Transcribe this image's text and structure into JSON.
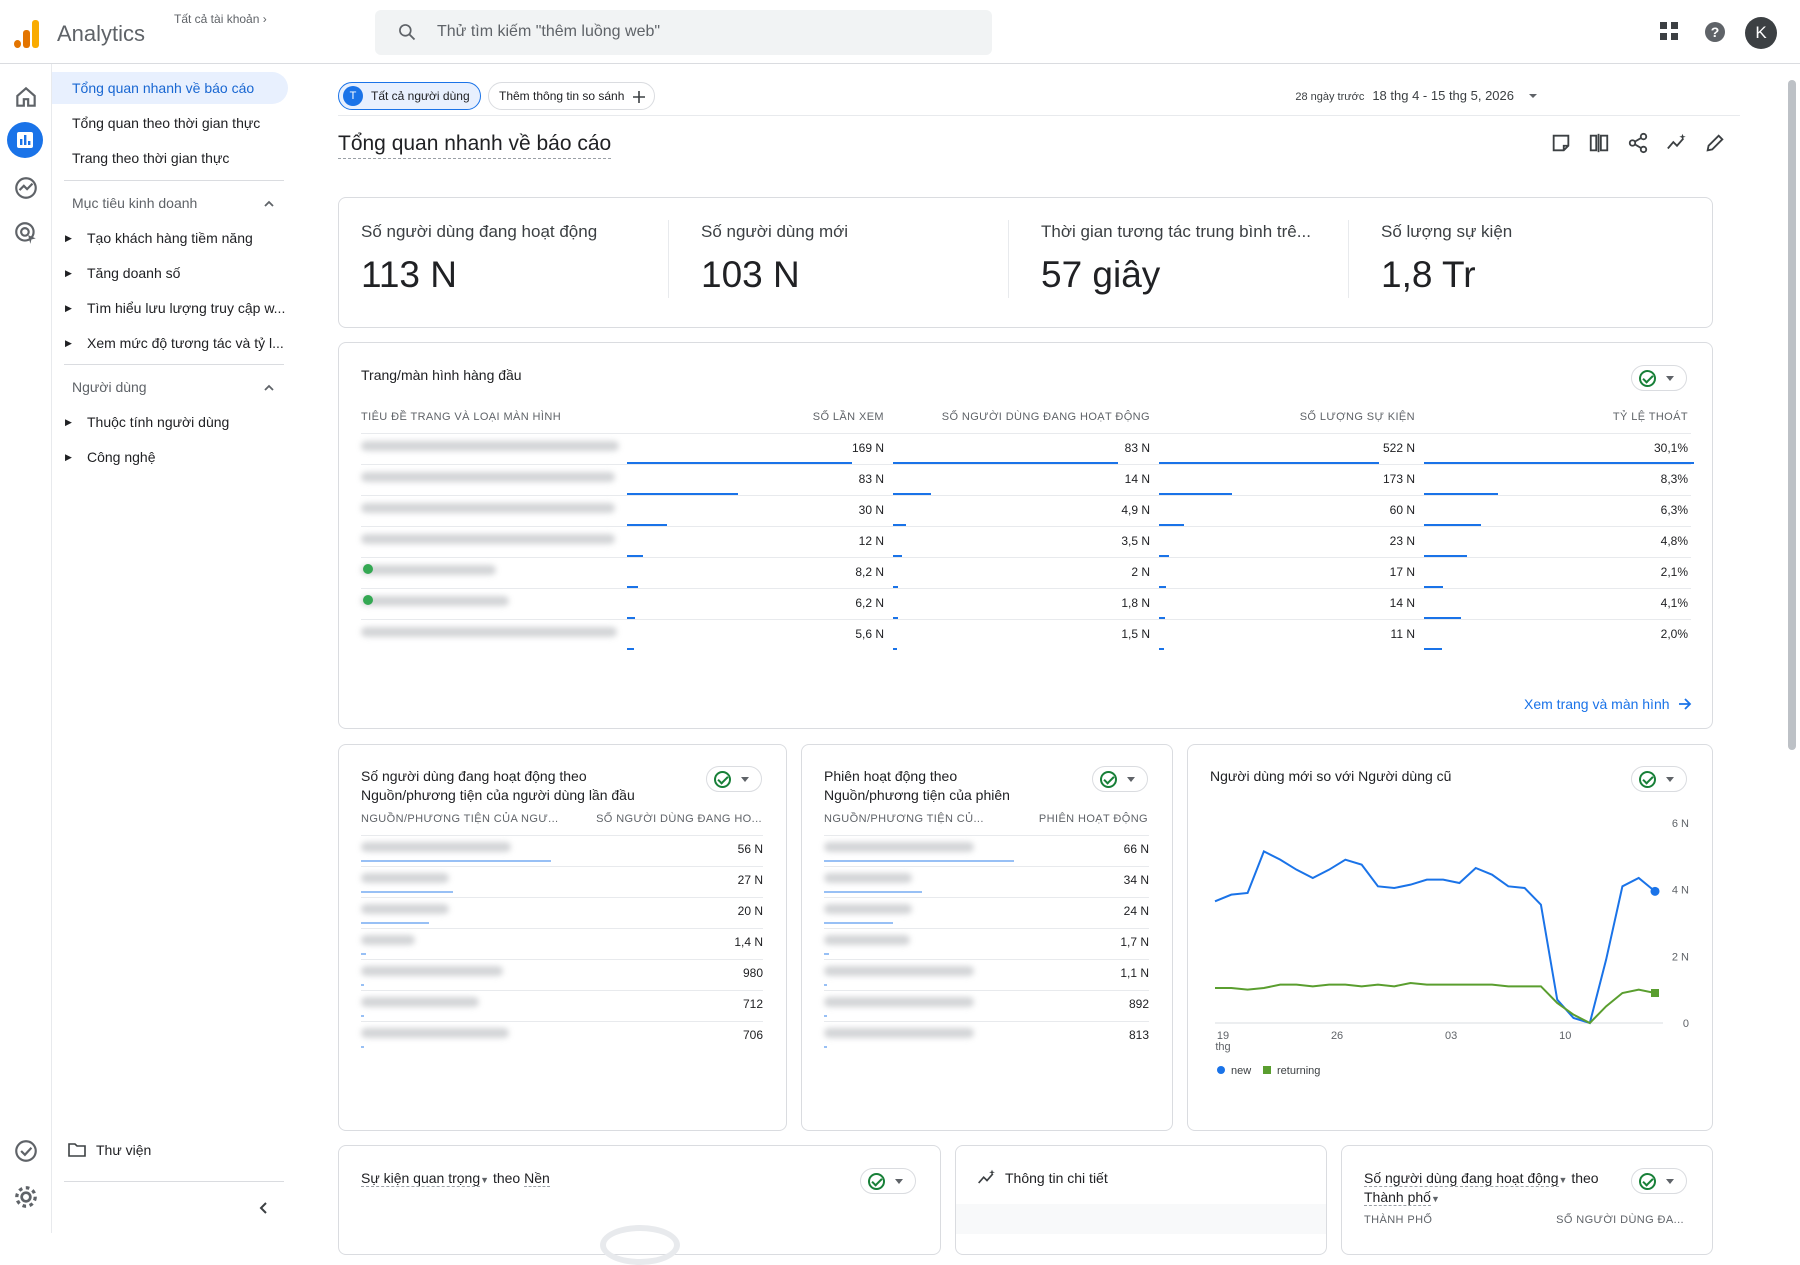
{
  "app": {
    "name": "Analytics",
    "account_crumb": "Tất cả tài khoản",
    "avatar_letter": "K",
    "search_placeholder": "Thử tìm kiếm \"thêm luồng web\""
  },
  "nav": {
    "items": [
      {
        "label": "Tổng quan nhanh về báo cáo"
      },
      {
        "label": "Tổng quan theo thời gian thực"
      },
      {
        "label": "Trang theo thời gian thực"
      }
    ],
    "section1": "Mục tiêu kinh doanh",
    "section1_items": [
      "Tạo khách hàng tiềm năng",
      "Tăng doanh số",
      "Tìm hiểu lưu lượng truy cập w...",
      "Xem mức độ tương tác và tỷ l..."
    ],
    "section2": "Người dùng",
    "section2_items": [
      "Thuộc tính người dùng",
      "Công nghệ"
    ],
    "library": "Thư viện"
  },
  "header": {
    "chip_all": "Tất cả người dùng",
    "chip_all_initial": "T",
    "chip_compare": "Thêm thông tin so sánh",
    "range_label": "28 ngày trước",
    "range": "18 thg 4 - 15 thg 5, 2026",
    "title": "Tổng quan nhanh về báo cáo"
  },
  "kpis": [
    {
      "label": "Số người dùng đang hoạt động",
      "value": "113 N"
    },
    {
      "label": "Số người dùng mới",
      "value": "103 N"
    },
    {
      "label": "Thời gian tương tác trung bình trê...",
      "value": "57 giây"
    },
    {
      "label": "Số lượng sự kiện",
      "value": "1,8 Tr"
    }
  ],
  "top_pages": {
    "title": "Trang/màn hình hàng đầu",
    "headers": [
      "TIÊU ĐỀ TRANG VÀ LOẠI MÀN HÌNH",
      "SỐ LẦN XEM",
      "SỐ NGƯỜI DÙNG ĐANG HOẠT ĐỘNG",
      "SỐ LƯỢNG SỰ KIỆN",
      "TỶ LỆ THOÁT"
    ],
    "rows": [
      [
        "169 N",
        "83 N",
        "522 N",
        "30,1%"
      ],
      [
        "83 N",
        "14 N",
        "173 N",
        "8,3%"
      ],
      [
        "30 N",
        "4,9 N",
        "60 N",
        "6,3%"
      ],
      [
        "12 N",
        "3,5 N",
        "23 N",
        "4,8%"
      ],
      [
        "8,2 N",
        "2 N",
        "17 N",
        "2,1%"
      ],
      [
        "6,2 N",
        "1,8 N",
        "14 N",
        "4,1%"
      ],
      [
        "5,6 N",
        "1,5 N",
        "11 N",
        "2,0%"
      ]
    ],
    "link": "Xem trang và màn hình"
  },
  "src_card": {
    "title1": "Số người dùng đang hoạt động theo",
    "title2": "Nguồn/phương tiện của người dùng lần đầu",
    "h1": "NGUỒN/PHƯƠNG TIỆN CỦA NGƯ...",
    "h2": "SỐ NGƯỜI DÙNG ĐANG HO...",
    "values": [
      "56 N",
      "27 N",
      "20 N",
      "1,4 N",
      "980",
      "712",
      "706"
    ]
  },
  "sess_card": {
    "title1": "Phiên hoạt động theo",
    "title2": "Nguồn/phương tiện của phiên",
    "h1": "NGUỒN/PHƯƠNG TIỆN CỦ...",
    "h2": "PHIÊN HOẠT ĐỘNG",
    "values": [
      "66 N",
      "34 N",
      "24 N",
      "1,7 N",
      "1,1 N",
      "892",
      "813"
    ]
  },
  "chart_card": {
    "title": "Người dùng mới so với Người dùng cũ"
  },
  "chart_data": {
    "type": "line",
    "x": [
      1,
      2,
      3,
      4,
      5,
      6,
      7,
      8,
      9,
      10,
      11,
      12,
      13,
      14,
      15,
      16,
      17,
      18,
      19,
      20,
      21,
      22,
      23,
      24,
      25,
      26,
      27,
      28
    ],
    "x_ticks": [
      {
        "i": 1,
        "label": "19",
        "sub": "thg"
      },
      {
        "i": 8,
        "label": "26"
      },
      {
        "i": 15,
        "label": "03"
      },
      {
        "i": 22,
        "label": "10"
      }
    ],
    "y_ticks": [
      "0",
      "2 N",
      "4 N",
      "6 N"
    ],
    "ylim": [
      0,
      6000
    ],
    "series": [
      {
        "name": "new",
        "color": "#1a73e8",
        "values": [
          3650,
          3850,
          3900,
          5150,
          4900,
          4600,
          4350,
          4600,
          4900,
          4750,
          4100,
          4050,
          4150,
          4300,
          4300,
          4200,
          4650,
          4450,
          4100,
          4050,
          3550,
          700,
          150,
          -100,
          1900,
          4100,
          4350,
          3950
        ]
      },
      {
        "name": "returning",
        "color": "#5a9e2f",
        "values": [
          1050,
          1050,
          1000,
          1050,
          1150,
          1150,
          1100,
          1150,
          1150,
          1100,
          1150,
          1100,
          1200,
          1150,
          1150,
          1150,
          1150,
          1150,
          1100,
          1100,
          1100,
          600,
          250,
          0,
          500,
          900,
          1000,
          900
        ]
      }
    ]
  },
  "bottom": {
    "c1a": "Sự kiện quan trọng",
    "c1b": "theo",
    "c1c": "Nền",
    "c2": "Thông tin chi tiết",
    "c3a": "Số người dùng đang hoạt động",
    "c3b": "theo",
    "c3c": "Thành phố",
    "c3h1": "THÀNH PHỐ",
    "c3h2": "SỐ NGƯỜI DÙNG ĐA..."
  }
}
